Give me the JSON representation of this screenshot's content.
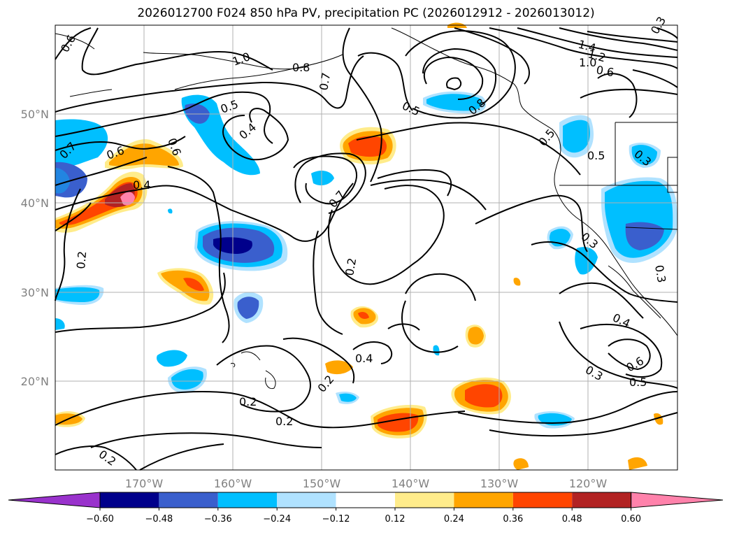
{
  "title": "2026012700 F024 850 hPa PV, precipitation PC (2026012912 - 2026013012)",
  "lat_labels": [
    "50°N",
    "40°N",
    "30°N",
    "20°N"
  ],
  "lon_labels": [
    "170°W",
    "160°W",
    "150°W",
    "140°W",
    "130°W",
    "120°W"
  ],
  "colorbar": {
    "ticks": [
      "−0.60",
      "−0.48",
      "−0.36",
      "−0.24",
      "−0.12",
      "0.12",
      "0.24",
      "0.36",
      "0.48",
      "0.60"
    ],
    "colors": [
      "#9932cc",
      "#00008b",
      "#3a5fcd",
      "#00bfff",
      "#b0e2ff",
      "#ffffff",
      "#ffec8b",
      "#ffa500",
      "#ff4500",
      "#b22222",
      "#ff82ab"
    ]
  },
  "contour_labels": [
    "0.6",
    "1.0",
    "0.8",
    "0.7",
    "0.5",
    "0.4",
    "0.6",
    "0.6",
    "0.7",
    "0.4",
    "0.2",
    "0.7",
    "0.2",
    "0.5",
    "0.8",
    "1.4",
    "1.2",
    "1.0",
    "0.6",
    "0.5",
    "0.5",
    "0.3",
    "0.3",
    "0.3",
    "0.4",
    "0.3",
    "0.6",
    "0.5",
    "0.4",
    "0.2",
    "0.2",
    "0.2",
    "0.2",
    "0.3"
  ]
}
